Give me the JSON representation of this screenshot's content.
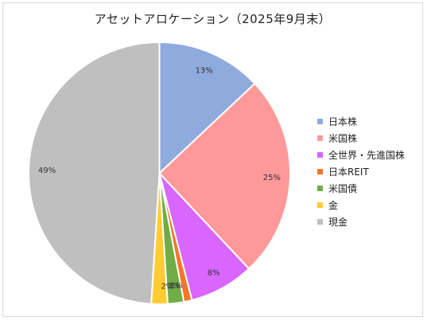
{
  "chart_data": {
    "type": "pie",
    "title": "アセットアロケーション（2025年9月末）",
    "legend_position": "right",
    "slices": [
      {
        "label": "日本株",
        "value": 13,
        "value_label": "13%",
        "color": "#8faadc"
      },
      {
        "label": "米国株",
        "value": 25,
        "value_label": "25%",
        "color": "#ff9999"
      },
      {
        "label": "全世界・先進国株",
        "value": 8,
        "value_label": "8%",
        "color": "#d966ff"
      },
      {
        "label": "日本REIT",
        "value": 1,
        "value_label": "1%",
        "color": "#f4762a"
      },
      {
        "label": "米国債",
        "value": 2,
        "value_label": "2%",
        "color": "#70ad47"
      },
      {
        "label": "金",
        "value": 2,
        "value_label": "2%",
        "color": "#ffcc33"
      },
      {
        "label": "現金",
        "value": 49,
        "value_label": "49%",
        "color": "#bfbfbf"
      }
    ]
  }
}
